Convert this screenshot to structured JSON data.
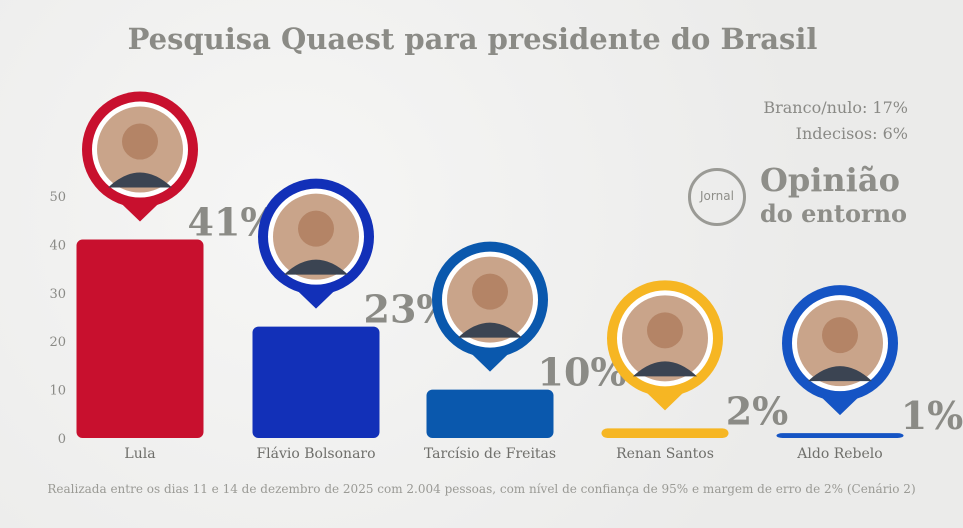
{
  "notes": {
    "branco": "Branco/nulo: 17%",
    "indecisos": "Indecisos: 6%"
  },
  "logo": {
    "small": "Jornal",
    "line1": "Opinião",
    "line2": "do entorno"
  },
  "footer": "Realizada entre os dias 11 e 14 de dezembro de 2025 com 2.004 pessoas, com nível de confiança de 95% e margem de erro de 2% (Cenário 2)",
  "chart_data": {
    "type": "bar",
    "title": "Pesquisa Quaest para presidente do Brasil",
    "xlabel": "",
    "ylabel": "",
    "ylim": [
      0,
      50
    ],
    "yticks": [
      0,
      10,
      20,
      30,
      40,
      50
    ],
    "categories": [
      "Lula",
      "Flávio Bolsonaro",
      "Tarcísio de Freitas",
      "Renan Santos",
      "Aldo Rebelo"
    ],
    "values": [
      41,
      23,
      10,
      2,
      1
    ],
    "data_labels": [
      "41%",
      "23%",
      "10%",
      "2%",
      "1%"
    ],
    "colors": [
      "#c8102e",
      "#1230b8",
      "#0a58ad",
      "#f6b623",
      "#1554c4"
    ],
    "grid": false
  }
}
